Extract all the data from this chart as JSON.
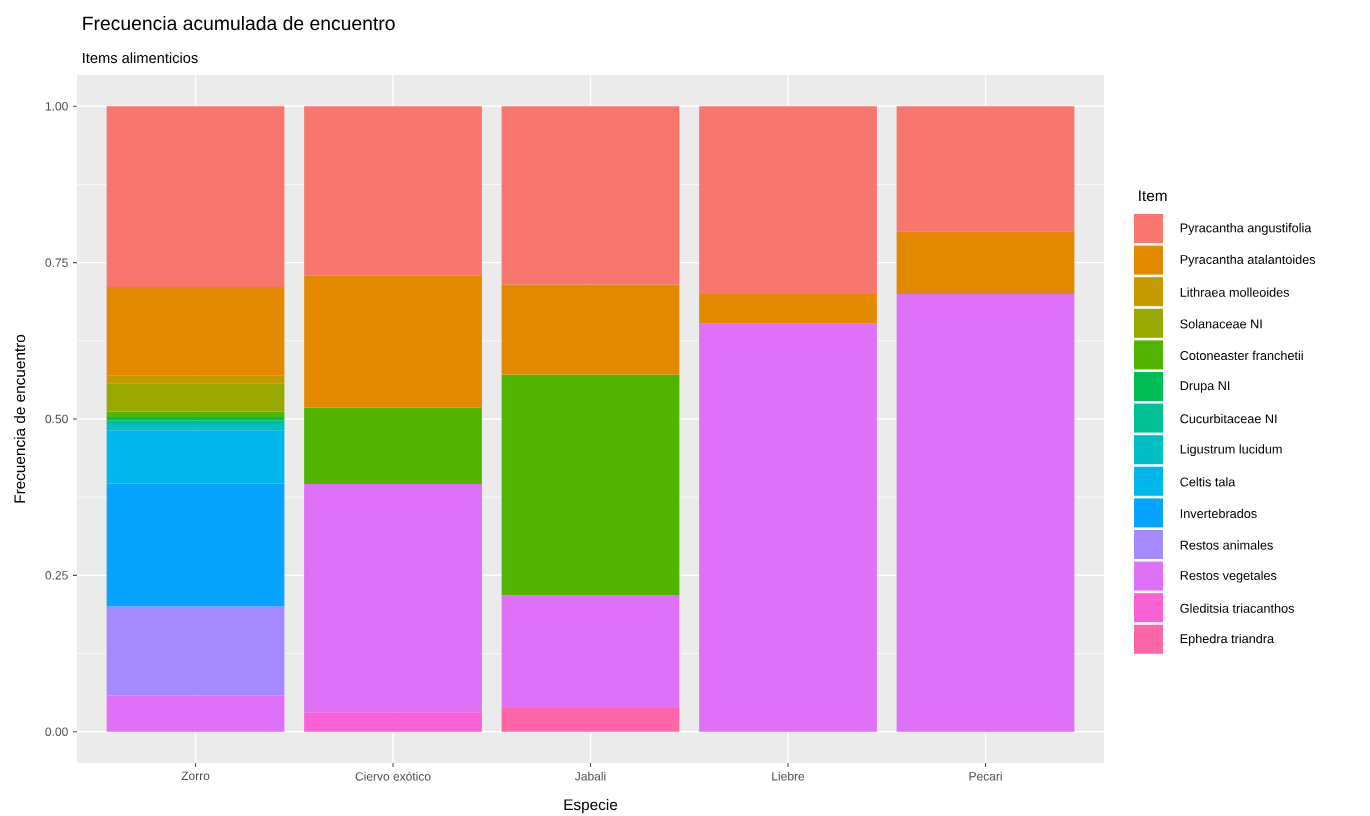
{
  "chart_data": {
    "type": "bar",
    "stacked": true,
    "title": "Frecuencia acumulada de encuentro",
    "subtitle": "Items alimenticios",
    "xlabel": "Especie",
    "ylabel": "Frecuencia de encuentro",
    "legend_title": "Item",
    "legend": "right",
    "grid": true,
    "categories": [
      "Zorro",
      "Ciervo exótico",
      "Jabali",
      "Liebre",
      "Pecari"
    ],
    "ylim": [
      -0.05,
      1.05
    ],
    "yticks": [
      {
        "value": 0,
        "label": "0.00"
      },
      {
        "value": 0.25,
        "label": "0.25"
      },
      {
        "value": 0.5,
        "label": "0.50"
      },
      {
        "value": 0.75,
        "label": "0.75"
      },
      {
        "value": 1,
        "label": "1.00"
      }
    ],
    "series": [
      {
        "name": "Ephedra triandra",
        "color": "#FF66A8",
        "values": [
          null,
          null,
          0.038,
          null,
          null
        ]
      },
      {
        "name": "Gleditsia triacanthos",
        "color": "#FB61D7",
        "values": [
          null,
          0.031,
          null,
          null,
          null
        ]
      },
      {
        "name": "Restos vegetales",
        "color": "#DF70F8",
        "values": [
          0.058,
          0.365,
          0.18,
          0.653,
          0.7
        ]
      },
      {
        "name": "Restos animales",
        "color": "#A58AFF",
        "values": [
          0.142,
          null,
          null,
          null,
          null
        ]
      },
      {
        "name": "Invertebrados",
        "color": "#06A4FF",
        "values": [
          0.197,
          null,
          null,
          null,
          null
        ]
      },
      {
        "name": "Celtis tala",
        "color": "#00B6EB",
        "values": [
          0.085,
          null,
          null,
          null,
          null
        ]
      },
      {
        "name": "Ligustrum lucidum",
        "color": "#00BFC4",
        "values": [
          0.01,
          null,
          null,
          null,
          null
        ]
      },
      {
        "name": "Cucurbitaceae NI",
        "color": "#00C094",
        "values": [
          0.006,
          null,
          null,
          null,
          null
        ]
      },
      {
        "name": "Drupa NI",
        "color": "#00BC56",
        "values": [
          0.005,
          null,
          null,
          null,
          null
        ]
      },
      {
        "name": "Cotoneaster franchetii",
        "color": "#53B400",
        "values": [
          0.009,
          0.122,
          0.353,
          null,
          null
        ]
      },
      {
        "name": "Solanaceae NI",
        "color": "#99A800",
        "values": [
          0.045,
          null,
          null,
          null,
          null
        ]
      },
      {
        "name": "Lithraea molleoides",
        "color": "#C49A00",
        "values": [
          0.012,
          null,
          null,
          null,
          null
        ]
      },
      {
        "name": "Pyracantha atalantoides",
        "color": "#E38900",
        "values": [
          0.142,
          0.211,
          0.144,
          0.047,
          0.1
        ]
      },
      {
        "name": "Pyracantha angustifolia",
        "color": "#F8766D",
        "values": [
          0.289,
          0.271,
          0.285,
          0.3,
          0.2
        ]
      }
    ]
  }
}
